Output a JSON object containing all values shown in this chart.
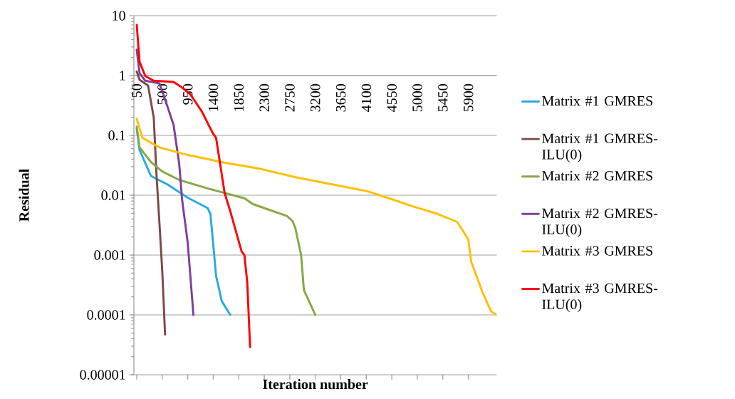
{
  "chart_data": {
    "type": "line",
    "xlabel": "Iteration number",
    "ylabel": "Residual",
    "log": "y",
    "grid": "y",
    "legend": "right",
    "marker": "none",
    "line_style": "solid",
    "xlim": [
      0,
      6400
    ],
    "xticks": [
      50,
      500,
      950,
      1400,
      1850,
      2300,
      2750,
      3200,
      3650,
      4100,
      4550,
      5000,
      5450,
      5900
    ],
    "ylim": [
      1e-05,
      10
    ],
    "yticks": [
      {
        "value": 1e-05,
        "label": "0.00001"
      },
      0.0001,
      0.001,
      0.01,
      0.1,
      1,
      10
    ],
    "series": [
      {
        "name": "Matrix #1 GMRES",
        "color": "#27aae1",
        "x": [
          50,
          100,
          300,
          600,
          950,
          1300,
          1350,
          1450,
          1550,
          1700
        ],
        "values": [
          0.13,
          0.057,
          0.021,
          0.015,
          0.0091,
          0.0061,
          0.0049,
          0.00045,
          0.00017,
          0.0001
        ]
      },
      {
        "name": "Matrix #1 GMRES-ILU(0)",
        "color": "#7b4a48",
        "x": [
          50,
          100,
          250,
          350,
          400,
          450,
          500,
          550
        ],
        "values": [
          1.17,
          0.85,
          0.68,
          0.2,
          0.021,
          0.0035,
          0.00055,
          4.7e-05
        ]
      },
      {
        "name": "Matrix #2 GMRES",
        "color": "#86a845",
        "x": [
          50,
          100,
          300,
          500,
          800,
          1300,
          1950,
          2100,
          2700,
          2800,
          2850,
          2950,
          3000,
          3200
        ],
        "values": [
          0.14,
          0.063,
          0.036,
          0.025,
          0.018,
          0.013,
          0.0089,
          0.0071,
          0.0045,
          0.0037,
          0.0028,
          0.001,
          0.00026,
          0.0001
        ]
      },
      {
        "name": "Matrix #2 GMRES-ILU(0)",
        "color": "#7f3f98",
        "x": [
          50,
          100,
          200,
          450,
          550,
          700,
          800,
          850,
          950,
          1050
        ],
        "values": [
          2.7,
          1.09,
          0.82,
          0.74,
          0.4,
          0.15,
          0.033,
          0.0085,
          0.0016,
          0.0001
        ]
      },
      {
        "name": "Matrix #3 GMRES",
        "color": "#ffc000",
        "x": [
          50,
          150,
          450,
          950,
          1600,
          2200,
          2850,
          3450,
          4100,
          4500,
          4950,
          5350,
          5700,
          5800,
          5900,
          5950,
          6150,
          6300,
          6400
        ],
        "values": [
          0.19,
          0.091,
          0.063,
          0.047,
          0.035,
          0.028,
          0.02,
          0.0155,
          0.0118,
          0.0089,
          0.0064,
          0.0049,
          0.0036,
          0.0026,
          0.0018,
          0.00078,
          0.00024,
          0.000115,
          0.0001
        ]
      },
      {
        "name": "Matrix #3 GMRES-ILU(0)",
        "color": "#ff0000",
        "x": [
          50,
          100,
          200,
          350,
          700,
          850,
          1000,
          1200,
          1350,
          1400,
          1450,
          1600,
          1700,
          1900,
          1950,
          2000,
          2050
        ],
        "values": [
          7,
          1.7,
          0.98,
          0.82,
          0.78,
          0.63,
          0.48,
          0.25,
          0.13,
          0.106,
          0.091,
          0.011,
          0.0054,
          0.00115,
          0.001,
          0.00035,
          2.9e-05
        ]
      }
    ]
  }
}
